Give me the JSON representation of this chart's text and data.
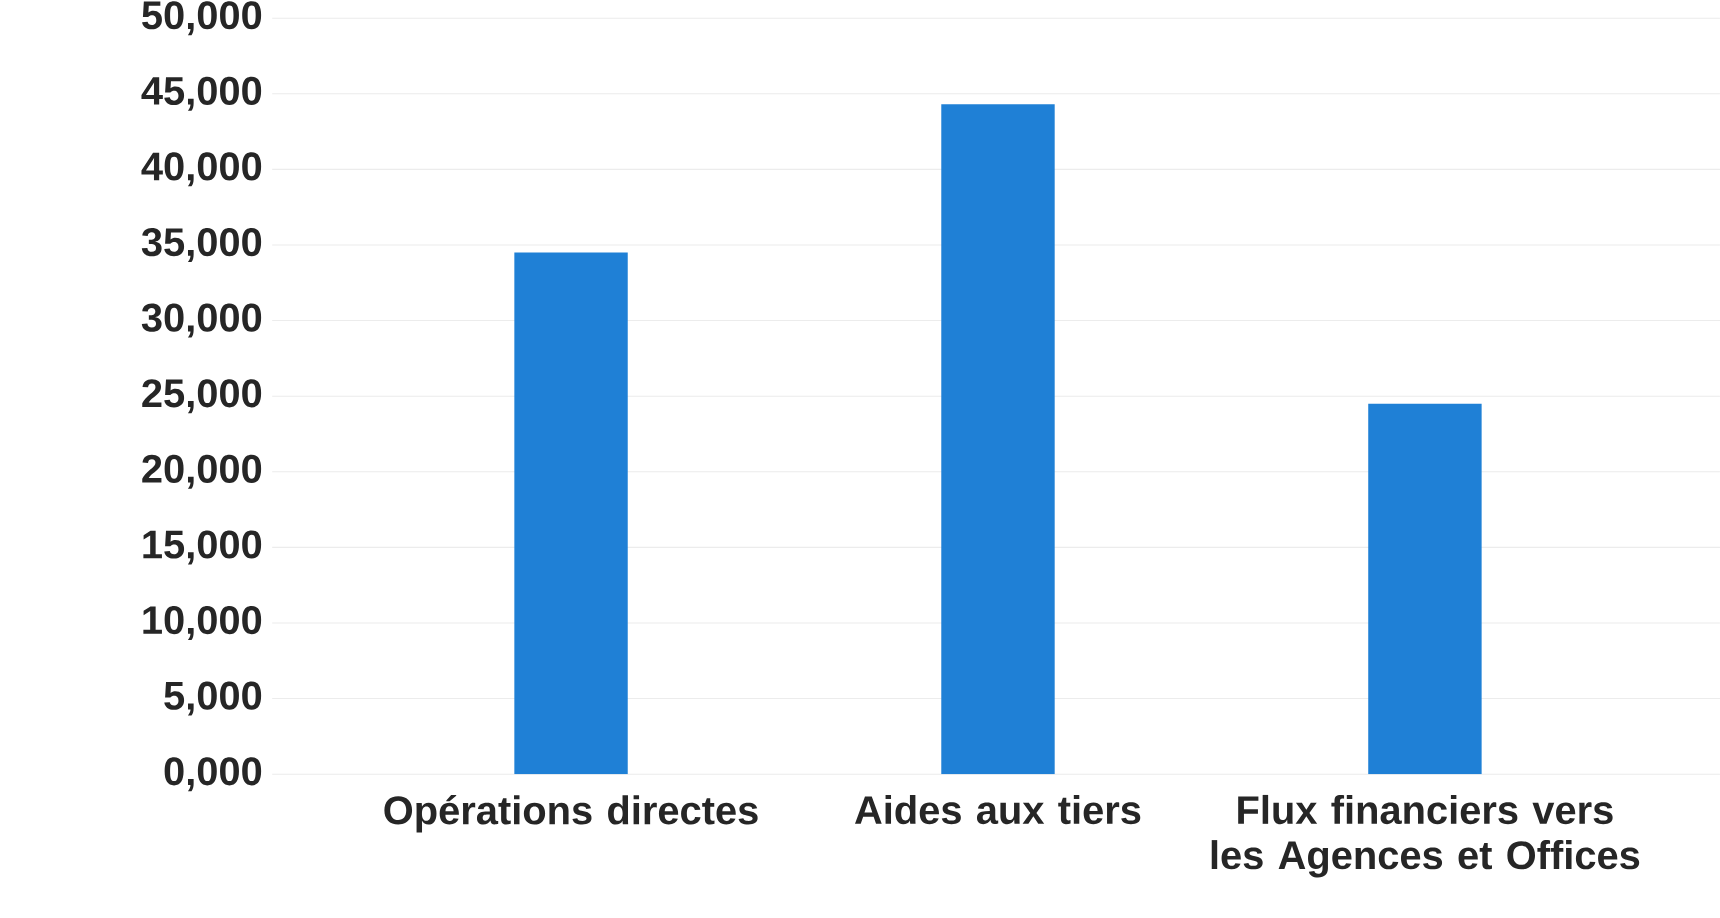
{
  "chart_data": {
    "type": "bar",
    "categories": [
      "Opérations directes",
      "Aides aux tiers",
      "Flux financiers vers les Agences et Offices"
    ],
    "values": [
      34500,
      44300,
      24500
    ],
    "color": "#1f80d6",
    "ylim": [
      0,
      50000
    ],
    "yticks": [
      {
        "value": 0,
        "label": "0,000"
      },
      {
        "value": 5000,
        "label": "5,000"
      },
      {
        "value": 10000,
        "label": "10,000"
      },
      {
        "value": 15000,
        "label": "15,000"
      },
      {
        "value": 20000,
        "label": "20,000"
      },
      {
        "value": 25000,
        "label": "25,000"
      },
      {
        "value": 30000,
        "label": "30,000"
      },
      {
        "value": 35000,
        "label": "35,000"
      },
      {
        "value": 40000,
        "label": "40,000"
      },
      {
        "value": 45000,
        "label": "45,000"
      },
      {
        "value": 50000,
        "label": "50,000"
      }
    ],
    "grid": "y"
  }
}
